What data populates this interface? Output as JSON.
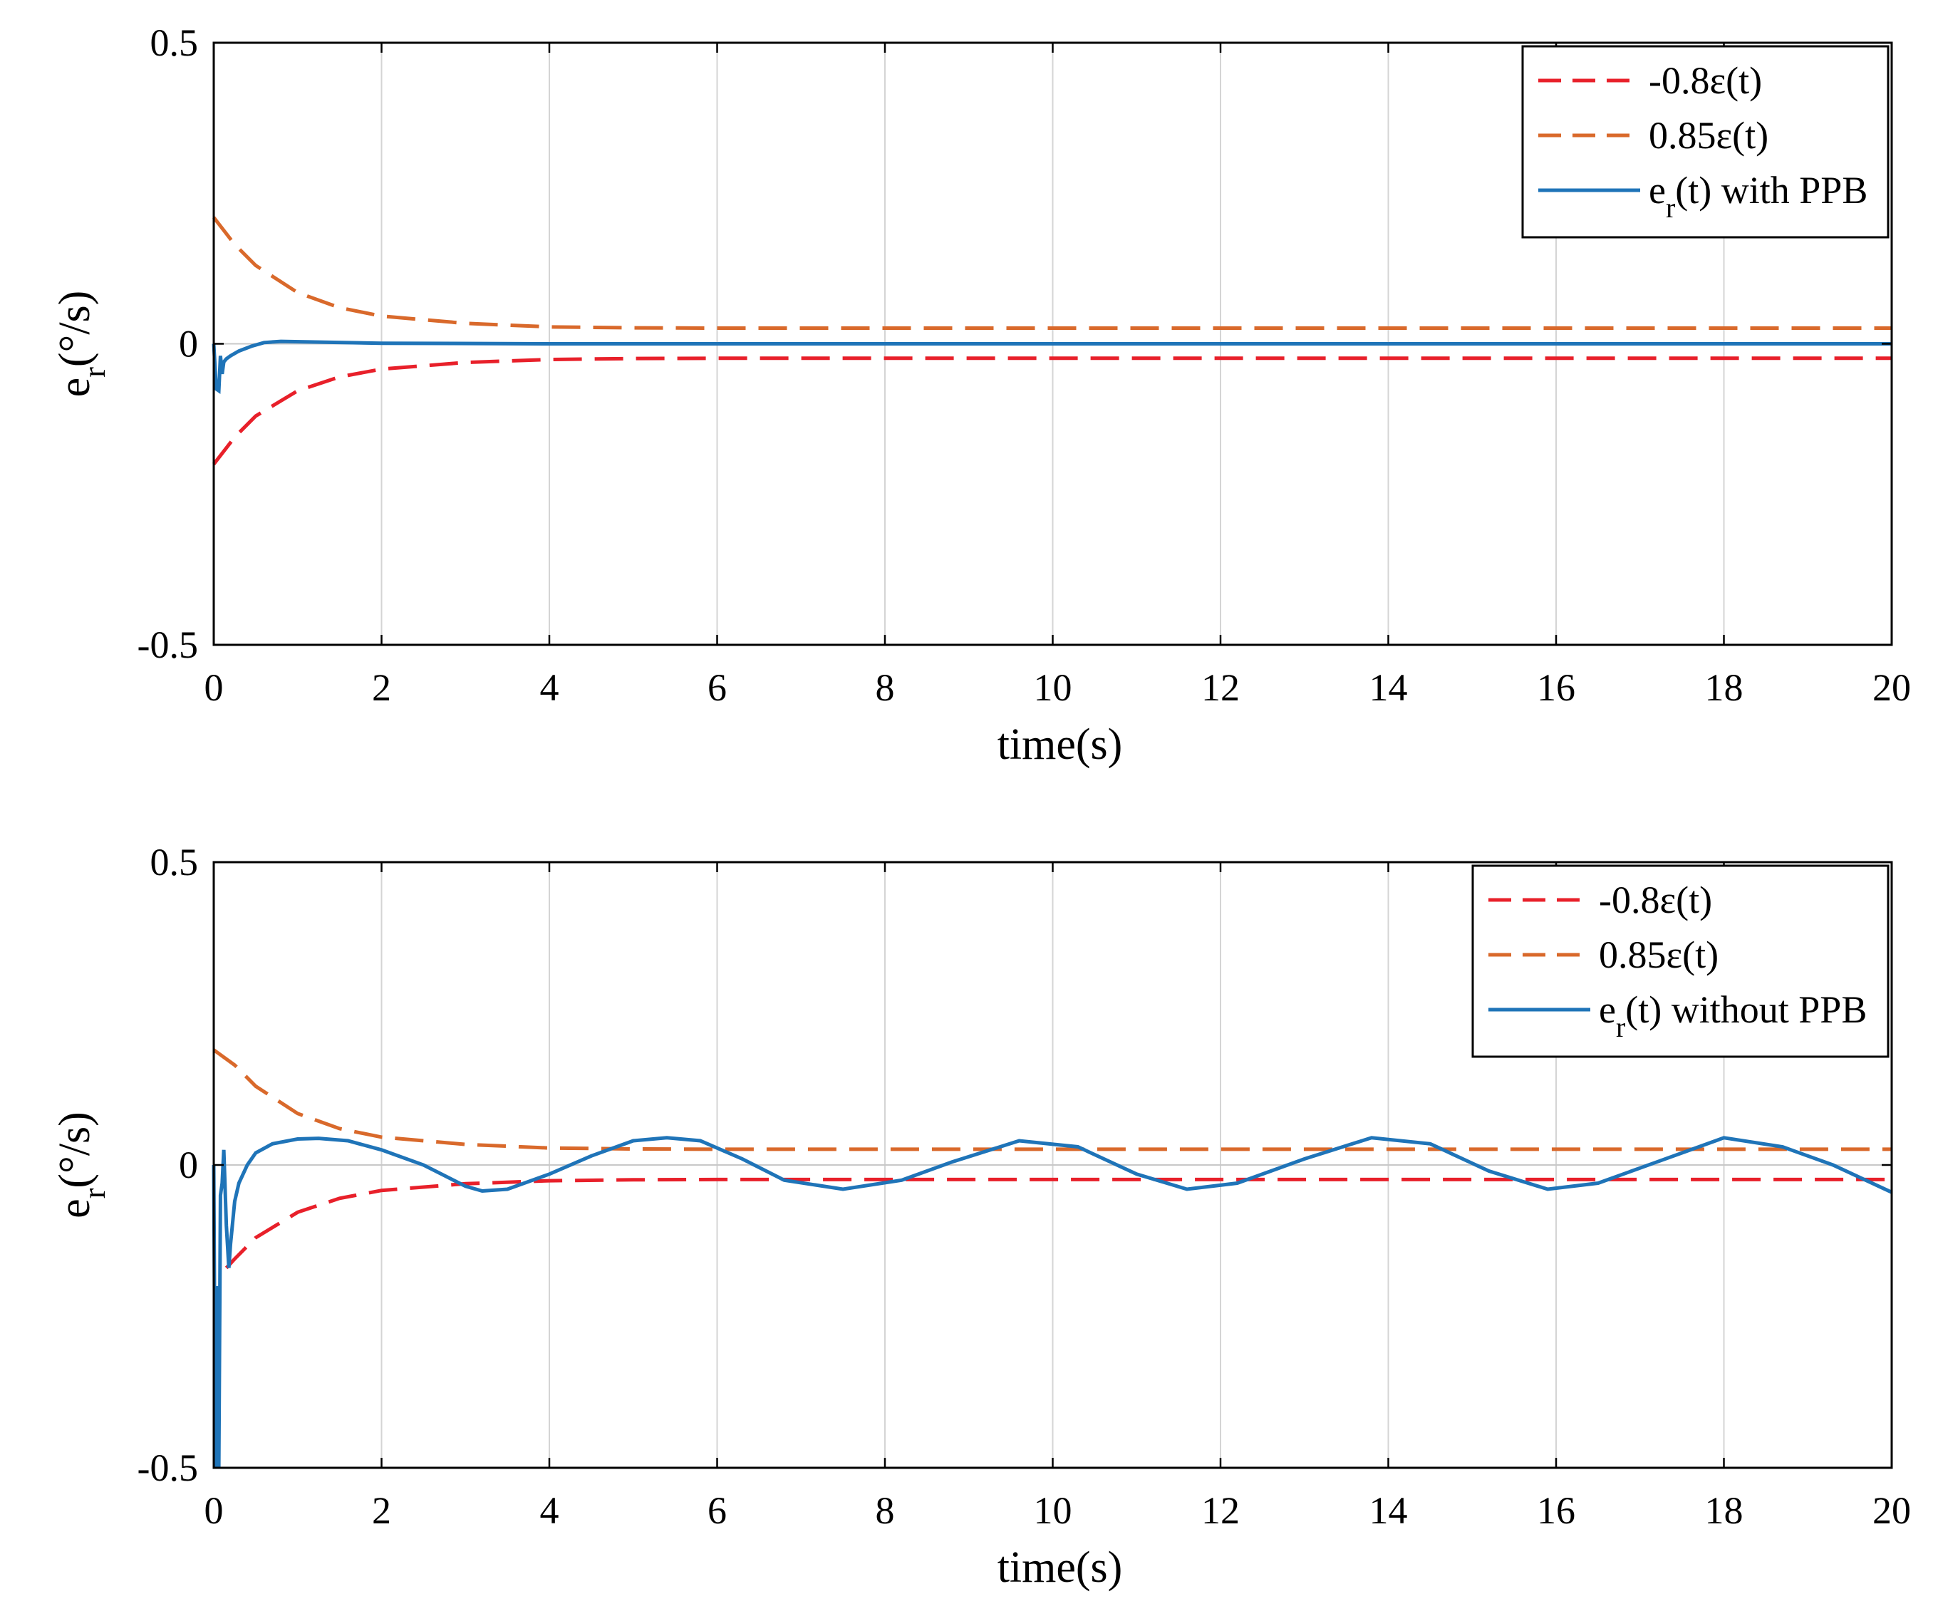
{
  "chart_data": [
    {
      "type": "line",
      "xlabel": "time(s)",
      "ylabel": "e",
      "ylabel_sub": "r",
      "ylabel_unit": "(°/s)",
      "xlim": [
        0,
        20
      ],
      "ylim": [
        -0.5,
        0.5
      ],
      "xticks": [
        0,
        2,
        4,
        6,
        8,
        10,
        12,
        14,
        16,
        18,
        20
      ],
      "yticks": [
        0.5,
        0,
        -0.5
      ],
      "xtick_labels": [
        "0",
        "2",
        "4",
        "6",
        "8",
        "10",
        "12",
        "14",
        "16",
        "18",
        "20"
      ],
      "ytick_labels": [
        "0.5",
        "0",
        "-0.5"
      ],
      "grid": "vertical",
      "legend_position": "top-right",
      "legend": [
        {
          "label": "-0.8ε(t)",
          "color": "#e8202a",
          "style": "dashed"
        },
        {
          "label": "0.85ε(t)",
          "color": "#d9692b",
          "style": "dashed"
        },
        {
          "label_main": "e",
          "label_sub": "r",
          "label_rest": "(t) with PPB",
          "color": "#1f74b8",
          "style": "solid"
        }
      ],
      "series": [
        {
          "name": "-0.8ε(t)",
          "x": [
            0,
            0.25,
            0.5,
            1,
            1.5,
            2,
            3,
            4,
            5,
            6,
            8,
            10,
            12,
            14,
            16,
            18,
            20
          ],
          "values": [
            -0.2,
            -0.155,
            -0.12,
            -0.078,
            -0.055,
            -0.042,
            -0.031,
            -0.026,
            -0.0245,
            -0.024,
            -0.024,
            -0.024,
            -0.024,
            -0.024,
            -0.024,
            -0.024,
            -0.024
          ]
        },
        {
          "name": "0.85ε(t)",
          "x": [
            0,
            0.25,
            0.5,
            1,
            1.5,
            2,
            3,
            4,
            5,
            6,
            8,
            10,
            12,
            14,
            16,
            18,
            20
          ],
          "values": [
            0.21,
            0.165,
            0.13,
            0.085,
            0.06,
            0.046,
            0.034,
            0.028,
            0.0265,
            0.026,
            0.026,
            0.026,
            0.026,
            0.026,
            0.026,
            0.026,
            0.026
          ]
        },
        {
          "name": "e_r(t) with PPB",
          "x": [
            0,
            0.03,
            0.06,
            0.08,
            0.1,
            0.12,
            0.15,
            0.2,
            0.3,
            0.45,
            0.6,
            0.8,
            1.2,
            2,
            4,
            8,
            12,
            16,
            20
          ],
          "values": [
            0,
            -0.075,
            -0.078,
            -0.02,
            -0.05,
            -0.03,
            -0.025,
            -0.02,
            -0.012,
            -0.004,
            0.002,
            0.004,
            0.003,
            0.001,
            0.0,
            0.0,
            0.0,
            0.0,
            0.0
          ]
        }
      ]
    },
    {
      "type": "line",
      "xlabel": "time(s)",
      "ylabel": "e",
      "ylabel_sub": "r",
      "ylabel_unit": "(°/s)",
      "xlim": [
        0,
        20
      ],
      "ylim": [
        -0.5,
        0.5
      ],
      "xticks": [
        0,
        2,
        4,
        6,
        8,
        10,
        12,
        14,
        16,
        18,
        20
      ],
      "yticks": [
        0.5,
        0,
        -0.5
      ],
      "xtick_labels": [
        "0",
        "2",
        "4",
        "6",
        "8",
        "10",
        "12",
        "14",
        "16",
        "18",
        "20"
      ],
      "ytick_labels": [
        "0.5",
        "0",
        "-0.5"
      ],
      "grid": "vertical",
      "legend_position": "top-right",
      "legend": [
        {
          "label": "-0.8ε(t)",
          "color": "#e8202a",
          "style": "dashed"
        },
        {
          "label": "0.85ε(t)",
          "color": "#d9692b",
          "style": "dashed"
        },
        {
          "label_main": "e",
          "label_sub": "r",
          "label_rest": "(t) without PPB",
          "color": "#1f74b8",
          "style": "solid"
        }
      ],
      "series": [
        {
          "name": "-0.8ε(t)",
          "x": [
            0.15,
            0.25,
            0.5,
            1,
            1.5,
            2,
            3,
            4,
            5,
            6,
            8,
            10,
            12,
            14,
            16,
            18,
            20
          ],
          "values": [
            -0.17,
            -0.155,
            -0.12,
            -0.078,
            -0.055,
            -0.042,
            -0.031,
            -0.026,
            -0.0245,
            -0.024,
            -0.024,
            -0.024,
            -0.024,
            -0.024,
            -0.024,
            -0.024,
            -0.024
          ]
        },
        {
          "name": "0.85ε(t)",
          "x": [
            0,
            0.25,
            0.5,
            1,
            1.5,
            2,
            3,
            4,
            5,
            6,
            8,
            10,
            12,
            14,
            16,
            18,
            20
          ],
          "values": [
            0.19,
            0.165,
            0.13,
            0.085,
            0.06,
            0.046,
            0.034,
            0.028,
            0.0265,
            0.026,
            0.026,
            0.026,
            0.026,
            0.026,
            0.026,
            0.026,
            0.026
          ]
        },
        {
          "name": "e_r(t) without PPB",
          "x": [
            0,
            0.02,
            0.04,
            0.06,
            0.08,
            0.1,
            0.12,
            0.15,
            0.18,
            0.2,
            0.25,
            0.3,
            0.4,
            0.5,
            0.7,
            1.0,
            1.25,
            1.6,
            2.0,
            2.5,
            3.0,
            3.2,
            3.5,
            4.0,
            4.5,
            5.0,
            5.4,
            5.8,
            6.3,
            6.8,
            7.5,
            8.2,
            8.8,
            9.6,
            10.3,
            11.0,
            11.6,
            12.2,
            13.0,
            13.8,
            14.5,
            15.2,
            15.9,
            16.5,
            17.2,
            18.0,
            18.7,
            19.3,
            20.0
          ],
          "values": [
            0,
            -0.5,
            -0.2,
            -0.5,
            -0.05,
            -0.03,
            0.025,
            -0.1,
            -0.17,
            -0.13,
            -0.06,
            -0.03,
            0.0,
            0.02,
            0.035,
            0.043,
            0.044,
            0.04,
            0.025,
            0.0,
            -0.035,
            -0.043,
            -0.04,
            -0.015,
            0.015,
            0.04,
            0.045,
            0.04,
            0.01,
            -0.025,
            -0.04,
            -0.025,
            0.005,
            0.04,
            0.03,
            -0.015,
            -0.04,
            -0.03,
            0.01,
            0.045,
            0.035,
            -0.01,
            -0.04,
            -0.03,
            0.005,
            0.045,
            0.03,
            0.0,
            -0.045
          ]
        }
      ]
    }
  ]
}
